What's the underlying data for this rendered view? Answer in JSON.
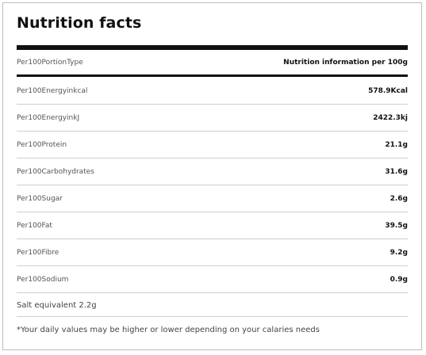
{
  "title": "Nutrition facts",
  "header": {
    "label": "Per100PortionType",
    "value": "Nutrition information per 100g"
  },
  "rows": [
    {
      "label": "Per100Energyinkcal",
      "value": "578.9Kcal"
    },
    {
      "label": "Per100EnergyinkJ",
      "value": "2422.3kj"
    },
    {
      "label": "Per100Protein",
      "value": "21.1g"
    },
    {
      "label": "Per100Carbohydrates",
      "value": "31.6g"
    },
    {
      "label": "Per100Sugar",
      "value": "2.6g"
    },
    {
      "label": "Per100Fat",
      "value": "39.5g"
    },
    {
      "label": "Per100Fibre",
      "value": "9.2g"
    },
    {
      "label": "Per100Sodium",
      "value": "0.9g"
    }
  ],
  "salt_equivalent": "Salt equivalent 2.2g",
  "footnote": "*Your daily values may be higher or lower depending on your calaries needs"
}
